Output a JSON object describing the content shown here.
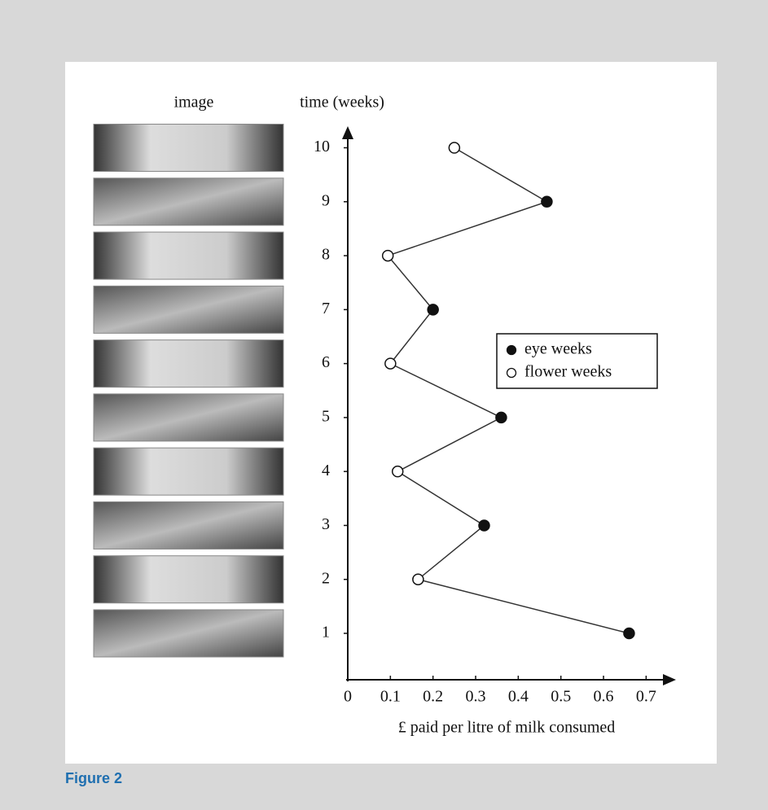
{
  "caption": "Figure 2",
  "chart_data": {
    "type": "line",
    "image_column_label": "image",
    "ylabel": "time (weeks)",
    "xlabel": "£ paid per litre of milk consumed",
    "x": [
      1,
      2,
      3,
      4,
      5,
      6,
      7,
      8,
      9,
      10
    ],
    "series": [
      {
        "name": "eye weeks",
        "color": "#111111",
        "values": [
          0.66,
          null,
          0.32,
          null,
          0.36,
          null,
          0.2,
          null,
          0.467,
          null
        ]
      },
      {
        "name": "flower weeks",
        "color": "#ffffff",
        "values": [
          null,
          0.165,
          null,
          0.117,
          null,
          0.1,
          null,
          0.094,
          null,
          0.25
        ]
      }
    ],
    "xlim": [
      0,
      0.77
    ],
    "xticks": [
      0,
      0.1,
      0.2,
      0.3,
      0.4,
      0.5,
      0.6,
      0.7
    ],
    "ylim": [
      0.14,
      10.4
    ],
    "yticks": [
      1,
      2,
      3,
      4,
      5,
      6,
      7,
      8,
      9,
      10
    ],
    "legend": "right"
  }
}
